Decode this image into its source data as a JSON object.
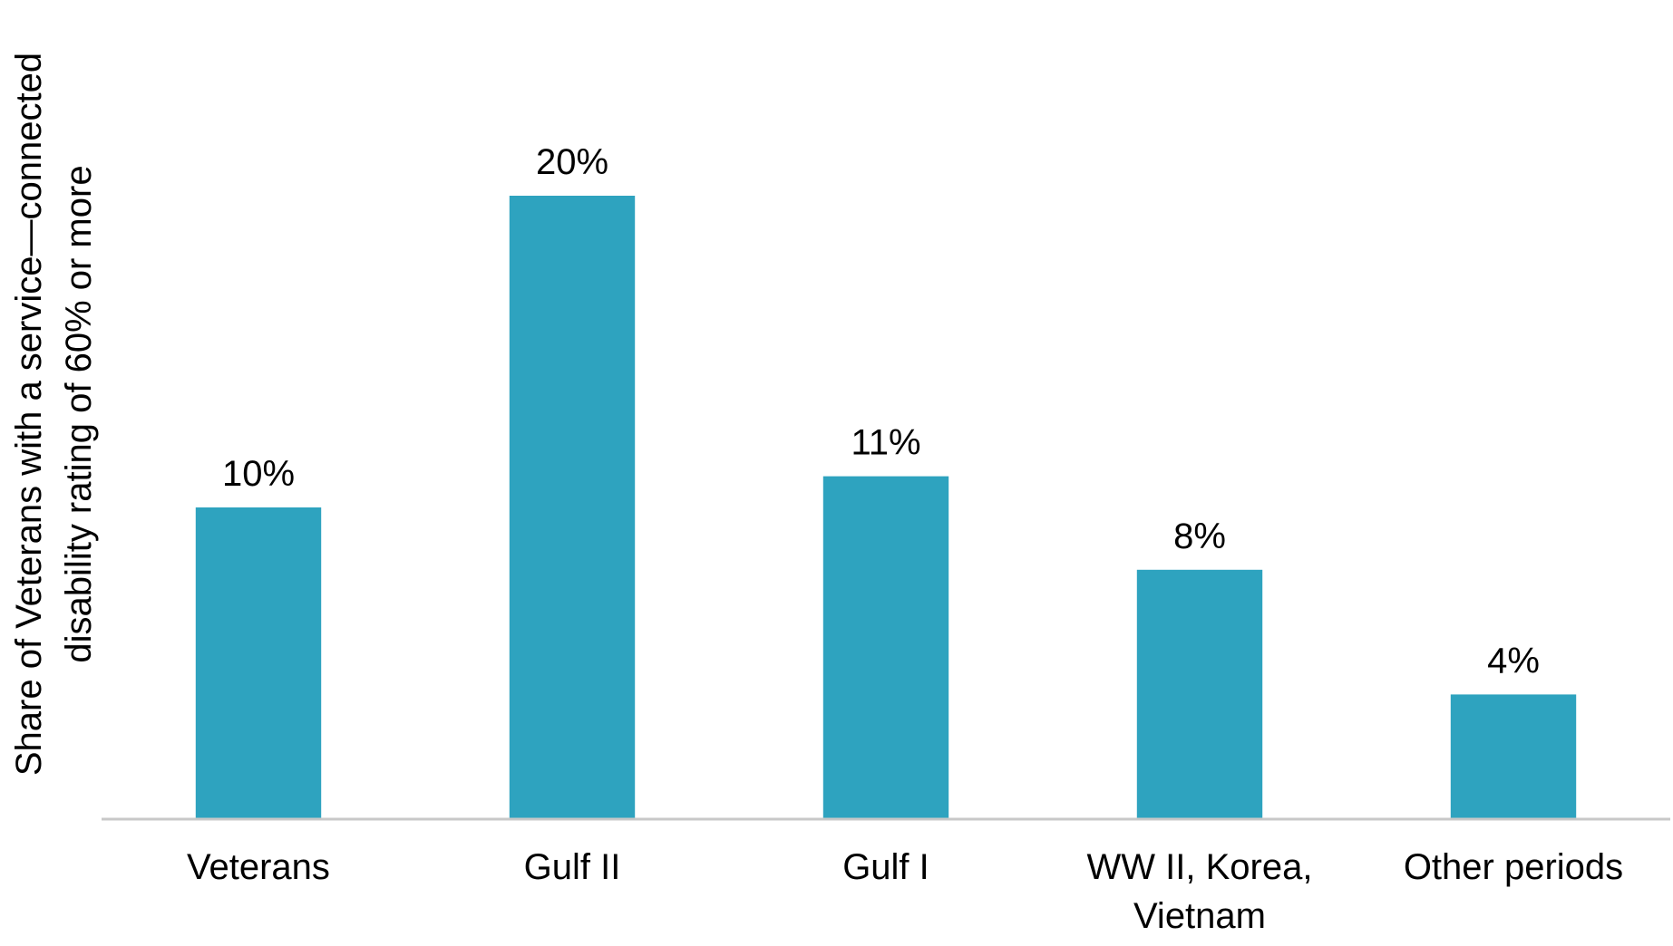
{
  "chart_data": {
    "type": "bar",
    "y_label": "Share of Veterans with a service—connected disability rating of 60% or more",
    "categories": [
      "Veterans",
      "Gulf II",
      "Gulf I",
      "WW II, Korea, Vietnam",
      "Other periods"
    ],
    "values": [
      10,
      20,
      11,
      8,
      4
    ],
    "value_labels": [
      "10%",
      "20%",
      "11%",
      "8%",
      "4%"
    ],
    "color": "#2ea3bf",
    "ylim": [
      0,
      24
    ]
  }
}
